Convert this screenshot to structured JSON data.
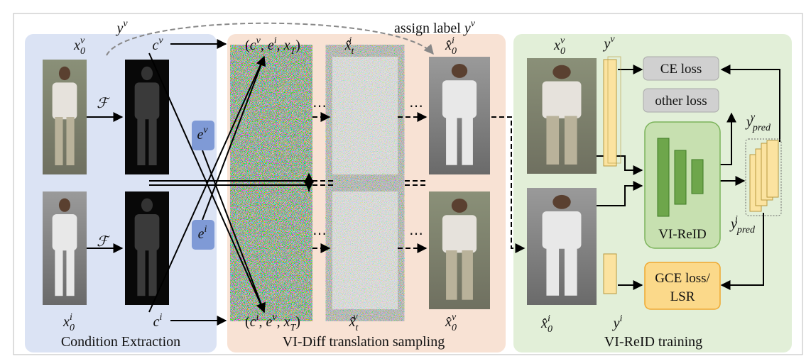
{
  "panels": {
    "condition": "Condition Extraction",
    "translation": "VI-Diff translation sampling",
    "training": "VI-ReID training"
  },
  "labels": [
    {
      "segments": [
        {
          "base": "x",
          "sub": "0",
          "sup": "v"
        }
      ]
    },
    {
      "segments": [
        {
          "base": "c",
          "sup": "v"
        }
      ]
    },
    {
      "segments": [
        {
          "base": "y",
          "sup": "v"
        }
      ]
    },
    {
      "segments": [
        {
          "base": "ℱ"
        }
      ]
    },
    {
      "segments": [
        {
          "base": "e",
          "sup": "v"
        }
      ]
    },
    {
      "segments": [
        {
          "base": "e",
          "sup": "i"
        }
      ]
    },
    {
      "segments": [
        {
          "base": "ℱ"
        }
      ]
    },
    {
      "segments": [
        {
          "base": "x",
          "sub": "0",
          "sup": "i"
        }
      ]
    },
    {
      "segments": [
        {
          "base": "c",
          "sup": "i"
        }
      ]
    },
    {
      "segments": [
        {
          "text": "assign label "
        },
        {
          "base": "y",
          "sup": "v"
        }
      ]
    },
    {
      "segments": [
        {
          "text": "("
        },
        {
          "base": "c",
          "sup": "v"
        },
        {
          "text": ", "
        },
        {
          "base": "e",
          "sup": "i"
        },
        {
          "text": ", "
        },
        {
          "base": "x",
          "sub": "T"
        },
        {
          "text": ")"
        }
      ]
    },
    {
      "segments": [
        {
          "base": "x̂",
          "sub": "t",
          "sup": "i"
        }
      ]
    },
    {
      "segments": [
        {
          "base": "x̂",
          "sub": "0",
          "sup": "i"
        }
      ]
    },
    {
      "segments": [
        {
          "text": "("
        },
        {
          "base": "c",
          "sup": "i"
        },
        {
          "text": ", "
        },
        {
          "base": "e",
          "sup": "v"
        },
        {
          "text": ", "
        },
        {
          "base": "x",
          "sub": "T"
        },
        {
          "text": ")"
        }
      ]
    },
    {
      "segments": [
        {
          "base": "x̂",
          "sub": "t",
          "sup": "v"
        }
      ]
    },
    {
      "segments": [
        {
          "base": "x̂",
          "sub": "0",
          "sup": "v"
        }
      ]
    },
    {
      "segments": [
        {
          "base": "x",
          "sub": "0",
          "sup": "v"
        }
      ]
    },
    {
      "segments": [
        {
          "base": "y",
          "sup": "v"
        }
      ]
    },
    {
      "segments": [
        {
          "base": "y",
          "sub": "pred",
          "sup": "v"
        }
      ]
    },
    {
      "segments": [
        {
          "base": "y",
          "sub": "pred",
          "sup": "i"
        }
      ]
    },
    {
      "segments": [
        {
          "base": "x̂",
          "sub": "0",
          "sup": "i"
        }
      ]
    },
    {
      "segments": [
        {
          "base": "y",
          "sup": "i"
        }
      ]
    }
  ],
  "ellipses": [
    "⋯",
    "⋯",
    "⋯",
    "⋯"
  ],
  "boxes": {
    "ce": "CE loss",
    "other": "other loss",
    "reid": "VI-ReID",
    "gce": [
      "GCE loss/",
      "LSR"
    ]
  }
}
